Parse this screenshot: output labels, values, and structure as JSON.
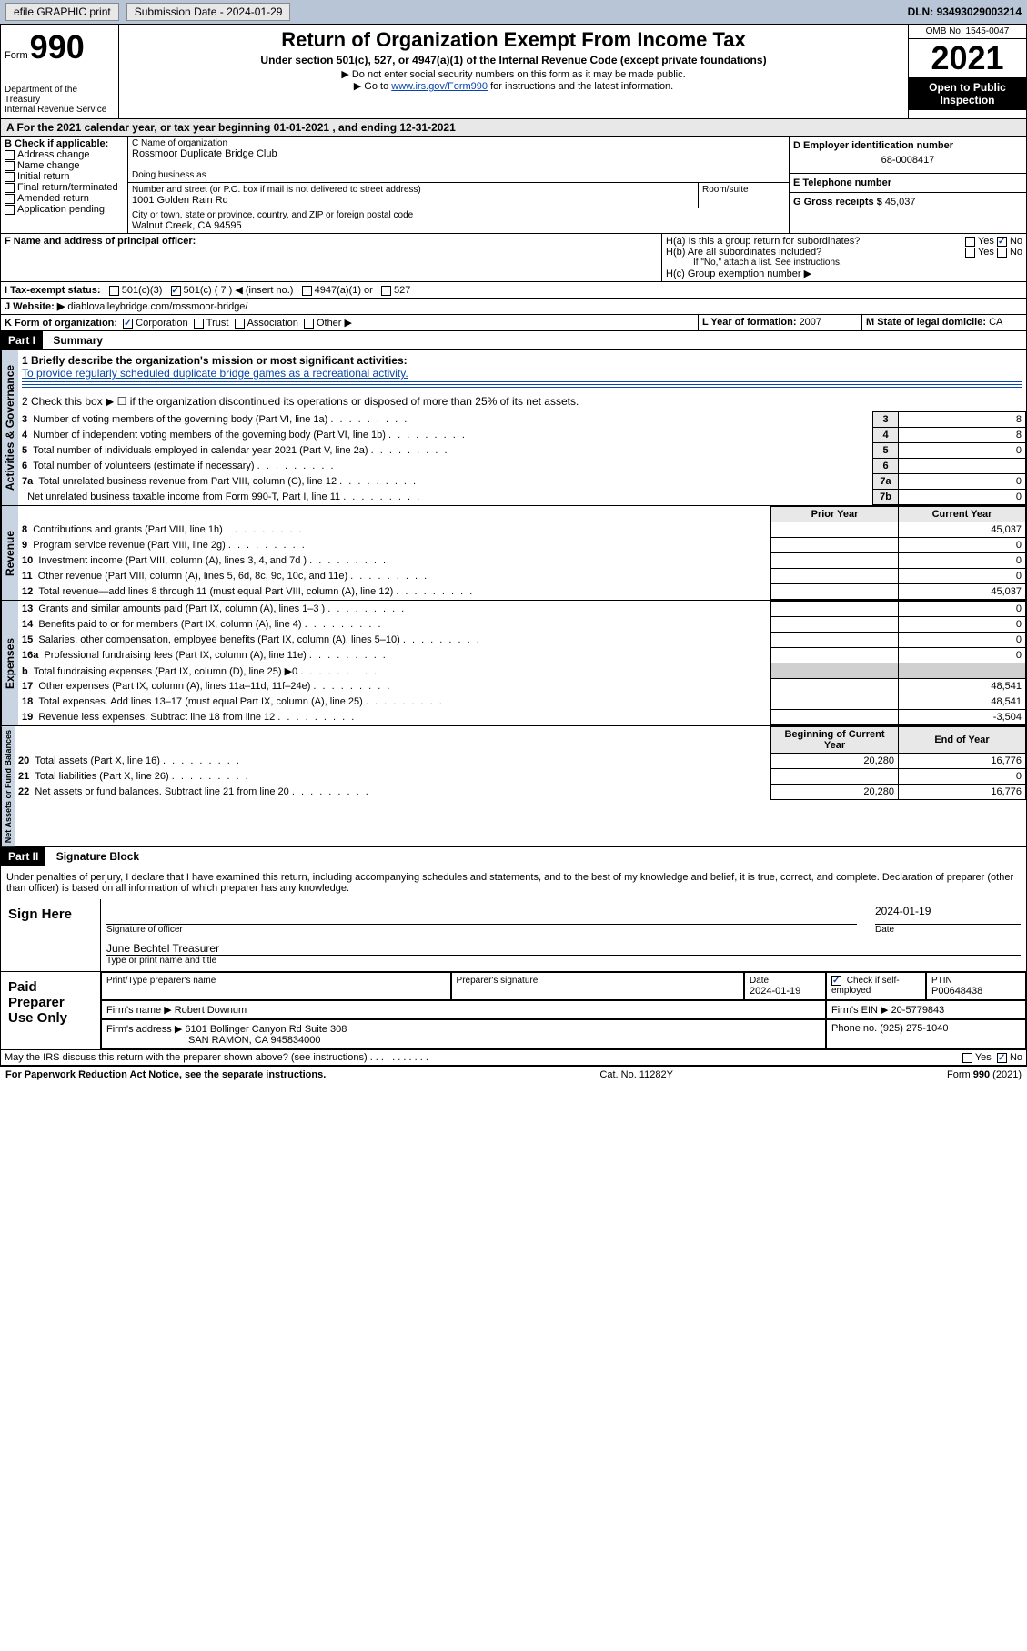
{
  "topbar": {
    "efile": "efile GRAPHIC print",
    "subdate_label": "Submission Date - ",
    "subdate": "2024-01-29",
    "dln_label": "DLN: ",
    "dln": "93493029003214"
  },
  "header": {
    "form_word": "Form",
    "form_num": "990",
    "dept": "Department of the Treasury\nInternal Revenue Service",
    "title": "Return of Organization Exempt From Income Tax",
    "sub": "Under section 501(c), 527, or 4947(a)(1) of the Internal Revenue Code (except private foundations)",
    "note1": "▶ Do not enter social security numbers on this form as it may be made public.",
    "note2_pre": "▶ Go to ",
    "note2_link": "www.irs.gov/Form990",
    "note2_post": " for instructions and the latest information.",
    "omb": "OMB No. 1545-0047",
    "year": "2021",
    "open": "Open to Public Inspection"
  },
  "sectionA": {
    "text": "A For the 2021 calendar year, or tax year beginning 01-01-2021   , and ending 12-31-2021"
  },
  "sectionB": {
    "label": "B Check if applicable:",
    "items": [
      "Address change",
      "Name change",
      "Initial return",
      "Final return/terminated",
      "Amended return",
      "Application pending"
    ]
  },
  "sectionC": {
    "name_label": "C Name of organization",
    "name": "Rossmoor Duplicate Bridge Club",
    "dba_label": "Doing business as",
    "dba": "",
    "addr_label": "Number and street (or P.O. box if mail is not delivered to street address)",
    "room_label": "Room/suite",
    "addr": "1001 Golden Rain Rd",
    "city_label": "City or town, state or province, country, and ZIP or foreign postal code",
    "city": "Walnut Creek, CA  94595"
  },
  "sectionD": {
    "label": "D Employer identification number",
    "ein": "68-0008417"
  },
  "sectionE": {
    "label": "E Telephone number",
    "phone": ""
  },
  "sectionG": {
    "label": "G Gross receipts $ ",
    "amount": "45,037"
  },
  "sectionF": {
    "label": "F Name and address of principal officer:",
    "value": ""
  },
  "sectionH": {
    "ha": "H(a)  Is this a group return for subordinates?",
    "ha_yes": "Yes",
    "ha_no": "No",
    "hb": "H(b)  Are all subordinates included?",
    "hb_yes": "Yes",
    "hb_no": "No",
    "hb_note": "If \"No,\" attach a list. See instructions.",
    "hc": "H(c)  Group exemption number ▶"
  },
  "sectionI": {
    "label": "I   Tax-exempt status:",
    "opt1": "501(c)(3)",
    "opt2": "501(c) ( 7 ) ◀ (insert no.)",
    "opt3": "4947(a)(1) or",
    "opt4": "527"
  },
  "sectionJ": {
    "label": "J   Website: ▶",
    "value": "diablovalleybridge.com/rossmoor-bridge/"
  },
  "sectionK": {
    "label": "K Form of organization:",
    "opt1": "Corporation",
    "opt2": "Trust",
    "opt3": "Association",
    "opt4": "Other ▶"
  },
  "sectionL": {
    "label": "L Year of formation: ",
    "value": "2007"
  },
  "sectionM": {
    "label": "M State of legal domicile: ",
    "value": "CA"
  },
  "part1": {
    "header": "Part I",
    "title": "Summary",
    "l1_label": "1   Briefly describe the organization's mission or most significant activities:",
    "l1_mission": "To provide regularly scheduled duplicate bridge games as a recreational activity.",
    "l2": "2   Check this box ▶ ☐  if the organization discontinued its operations or disposed of more than 25% of its net assets.",
    "lines_gov": [
      {
        "n": "3",
        "t": "Number of voting members of the governing body (Part VI, line 1a)",
        "box": "3",
        "v": "8"
      },
      {
        "n": "4",
        "t": "Number of independent voting members of the governing body (Part VI, line 1b)",
        "box": "4",
        "v": "8"
      },
      {
        "n": "5",
        "t": "Total number of individuals employed in calendar year 2021 (Part V, line 2a)",
        "box": "5",
        "v": "0"
      },
      {
        "n": "6",
        "t": "Total number of volunteers (estimate if necessary)",
        "box": "6",
        "v": ""
      },
      {
        "n": "7a",
        "t": "Total unrelated business revenue from Part VIII, column (C), line 12",
        "box": "7a",
        "v": "0"
      },
      {
        "n": "",
        "t": "Net unrelated business taxable income from Form 990-T, Part I, line 11",
        "box": "7b",
        "v": "0"
      }
    ],
    "col_prior": "Prior Year",
    "col_current": "Current Year",
    "lines_rev": [
      {
        "n": "8",
        "t": "Contributions and grants (Part VIII, line 1h)",
        "p": "",
        "c": "45,037"
      },
      {
        "n": "9",
        "t": "Program service revenue (Part VIII, line 2g)",
        "p": "",
        "c": "0"
      },
      {
        "n": "10",
        "t": "Investment income (Part VIII, column (A), lines 3, 4, and 7d )",
        "p": "",
        "c": "0"
      },
      {
        "n": "11",
        "t": "Other revenue (Part VIII, column (A), lines 5, 6d, 8c, 9c, 10c, and 11e)",
        "p": "",
        "c": "0"
      },
      {
        "n": "12",
        "t": "Total revenue—add lines 8 through 11 (must equal Part VIII, column (A), line 12)",
        "p": "",
        "c": "45,037"
      }
    ],
    "lines_exp": [
      {
        "n": "13",
        "t": "Grants and similar amounts paid (Part IX, column (A), lines 1–3 )",
        "p": "",
        "c": "0"
      },
      {
        "n": "14",
        "t": "Benefits paid to or for members (Part IX, column (A), line 4)",
        "p": "",
        "c": "0"
      },
      {
        "n": "15",
        "t": "Salaries, other compensation, employee benefits (Part IX, column (A), lines 5–10)",
        "p": "",
        "c": "0"
      },
      {
        "n": "16a",
        "t": "Professional fundraising fees (Part IX, column (A), line 11e)",
        "p": "",
        "c": "0"
      },
      {
        "n": "b",
        "t": "Total fundraising expenses (Part IX, column (D), line 25) ▶0",
        "p": "—",
        "c": "—"
      },
      {
        "n": "17",
        "t": "Other expenses (Part IX, column (A), lines 11a–11d, 11f–24e)",
        "p": "",
        "c": "48,541"
      },
      {
        "n": "18",
        "t": "Total expenses. Add lines 13–17 (must equal Part IX, column (A), line 25)",
        "p": "",
        "c": "48,541"
      },
      {
        "n": "19",
        "t": "Revenue less expenses. Subtract line 18 from line 12",
        "p": "",
        "c": "-3,504"
      }
    ],
    "col_begin": "Beginning of Current Year",
    "col_end": "End of Year",
    "lines_net": [
      {
        "n": "20",
        "t": "Total assets (Part X, line 16)",
        "p": "20,280",
        "c": "16,776"
      },
      {
        "n": "21",
        "t": "Total liabilities (Part X, line 26)",
        "p": "",
        "c": "0"
      },
      {
        "n": "22",
        "t": "Net assets or fund balances. Subtract line 21 from line 20",
        "p": "20,280",
        "c": "16,776"
      }
    ]
  },
  "part2": {
    "header": "Part II",
    "title": "Signature Block",
    "declaration": "Under penalties of perjury, I declare that I have examined this return, including accompanying schedules and statements, and to the best of my knowledge and belief, it is true, correct, and complete. Declaration of preparer (other than officer) is based on all information of which preparer has any knowledge.",
    "sign_here": "Sign Here",
    "sig_officer": "Signature of officer",
    "sig_date_label": "Date",
    "sig_date": "2024-01-19",
    "officer_name": "June Bechtel Treasurer",
    "type_name": "Type or print name and title",
    "paid_prep": "Paid Preparer Use Only",
    "prep_name_label": "Print/Type preparer's name",
    "prep_name": "",
    "prep_sig_label": "Preparer's signature",
    "prep_date_label": "Date",
    "prep_date": "2024-01-19",
    "prep_check_label": "Check ☑ if self-employed",
    "ptin_label": "PTIN",
    "ptin": "P00648438",
    "firm_name_label": "Firm's name   ▶ ",
    "firm_name": "Robert Downum",
    "firm_ein_label": "Firm's EIN ▶ ",
    "firm_ein": "20-5779843",
    "firm_addr_label": "Firm's address ▶ ",
    "firm_addr1": "6101 Bollinger Canyon Rd Suite 308",
    "firm_addr2": "SAN RAMON, CA  945834000",
    "firm_phone_label": "Phone no. ",
    "firm_phone": "(925) 275-1040",
    "may_irs": "May the IRS discuss this return with the preparer shown above? (see instructions)",
    "may_yes": "Yes",
    "may_no": "No"
  },
  "footer": {
    "left": "For Paperwork Reduction Act Notice, see the separate instructions.",
    "mid": "Cat. No. 11282Y",
    "right": "Form 990 (2021)"
  },
  "labels": {
    "activities": "Activities & Governance",
    "revenue": "Revenue",
    "expenses": "Expenses",
    "netassets": "Net Assets or Fund Balances"
  }
}
